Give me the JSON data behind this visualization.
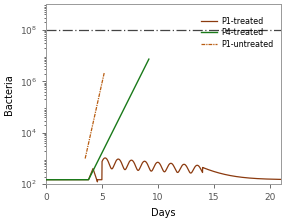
{
  "xlabel": "Days",
  "ylabel": "Bacteria",
  "xlim": [
    0,
    21
  ],
  "ylim_log": [
    100.0,
    1000000000.0
  ],
  "yticks": [
    100.0,
    10000.0,
    1000000.0,
    100000000.0
  ],
  "xticks": [
    0,
    5,
    10,
    15,
    20
  ],
  "color_p1_treated": "#8B3A0F",
  "color_p4_treated": "#1a7a1a",
  "color_p1_untreated": "#B85C10",
  "color_threshold": "#444444",
  "legend_labels": [
    "P1-treated",
    "P4-treated",
    "P1-untreated"
  ],
  "threshold": 100000000.0,
  "figsize": [
    2.85,
    2.22
  ],
  "dpi": 100
}
